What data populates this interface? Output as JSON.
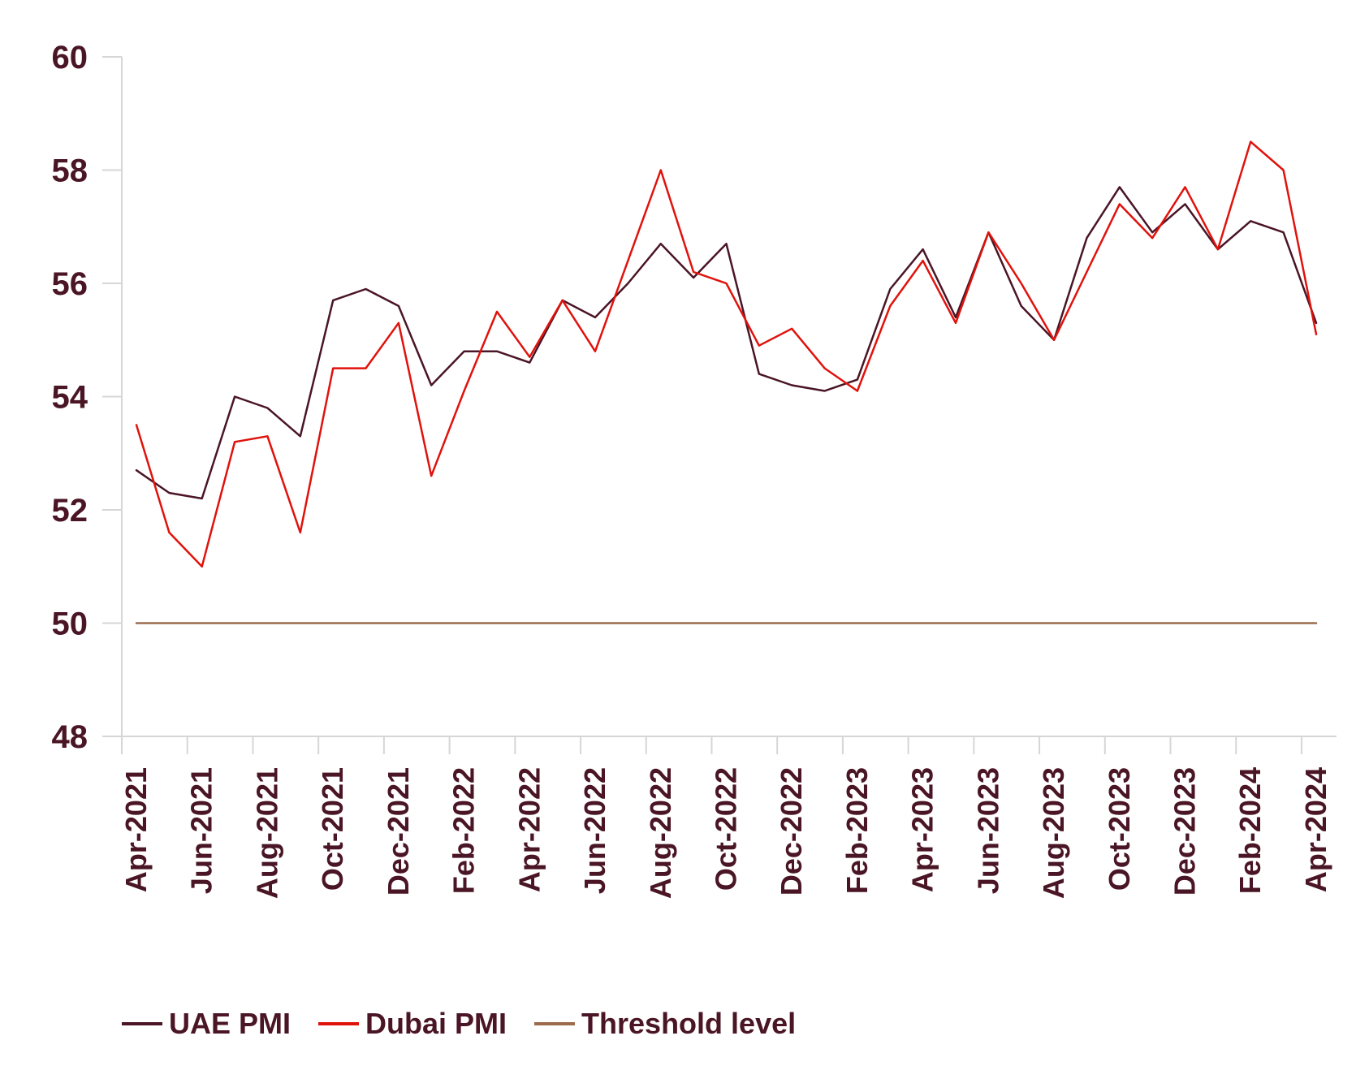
{
  "chart_data": {
    "type": "line",
    "title": "",
    "xlabel": "",
    "ylabel": "",
    "ylim": [
      48,
      60
    ],
    "yticks": [
      48,
      50,
      52,
      54,
      56,
      58,
      60
    ],
    "x": [
      "Apr-2021",
      "May-2021",
      "Jun-2021",
      "Jul-2021",
      "Aug-2021",
      "Sep-2021",
      "Oct-2021",
      "Nov-2021",
      "Dec-2021",
      "Jan-2022",
      "Feb-2022",
      "Mar-2022",
      "Apr-2022",
      "May-2022",
      "Jun-2022",
      "Jul-2022",
      "Aug-2022",
      "Sep-2022",
      "Oct-2022",
      "Nov-2022",
      "Dec-2022",
      "Jan-2023",
      "Feb-2023",
      "Mar-2023",
      "Apr-2023",
      "May-2023",
      "Jun-2023",
      "Jul-2023",
      "Aug-2023",
      "Sep-2023",
      "Oct-2023",
      "Nov-2023",
      "Dec-2023",
      "Jan-2024",
      "Feb-2024",
      "Mar-2024",
      "Apr-2024"
    ],
    "xtick_labels": [
      "Apr-2021",
      "Jun-2021",
      "Aug-2021",
      "Oct-2021",
      "Dec-2021",
      "Feb-2022",
      "Apr-2022",
      "Jun-2022",
      "Aug-2022",
      "Oct-2022",
      "Dec-2022",
      "Feb-2023",
      "Apr-2023",
      "Jun-2023",
      "Aug-2023",
      "Oct-2023",
      "Dec-2023",
      "Feb-2024",
      "Apr-2024"
    ],
    "series": [
      {
        "name": "UAE PMI",
        "color": "#4a1525",
        "values": [
          52.7,
          52.3,
          52.2,
          54.0,
          53.8,
          53.3,
          55.7,
          55.9,
          55.6,
          54.2,
          54.8,
          54.8,
          54.6,
          55.7,
          55.4,
          56.0,
          56.7,
          56.1,
          56.7,
          54.4,
          54.2,
          54.1,
          54.3,
          55.9,
          56.6,
          55.4,
          56.9,
          55.6,
          55.0,
          56.8,
          57.7,
          56.9,
          57.4,
          56.6,
          57.1,
          56.9,
          55.3
        ]
      },
      {
        "name": "Dubai PMI",
        "color": "#e0120c",
        "values": [
          53.5,
          51.6,
          51.0,
          53.2,
          53.3,
          51.6,
          54.5,
          54.5,
          55.3,
          52.6,
          54.1,
          55.5,
          54.7,
          55.7,
          54.8,
          56.4,
          58.0,
          56.2,
          56.0,
          54.9,
          55.2,
          54.5,
          54.1,
          55.6,
          56.4,
          55.3,
          56.9,
          56.0,
          55.0,
          56.2,
          57.4,
          56.8,
          57.7,
          56.6,
          58.5,
          58.0,
          55.1
        ]
      },
      {
        "name": "Threshold level",
        "color": "#9b6b4c",
        "values": [
          50,
          50,
          50,
          50,
          50,
          50,
          50,
          50,
          50,
          50,
          50,
          50,
          50,
          50,
          50,
          50,
          50,
          50,
          50,
          50,
          50,
          50,
          50,
          50,
          50,
          50,
          50,
          50,
          50,
          50,
          50,
          50,
          50,
          50,
          50,
          50,
          50
        ]
      }
    ],
    "legend_position": "bottom-left",
    "grid": false
  }
}
